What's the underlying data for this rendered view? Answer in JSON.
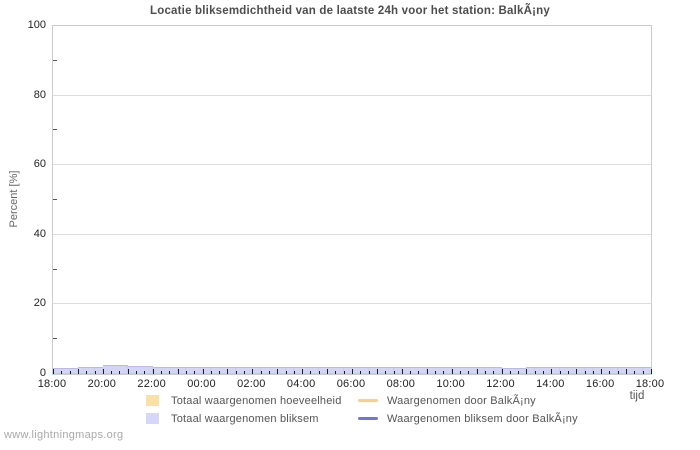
{
  "page": {
    "footer_link": "www.lightningmaps.org"
  },
  "chart_data": {
    "type": "area",
    "title": "Locatie bliksemdichtheid van de laatste 24h voor het station: BalkÃ¡ny",
    "xlabel": "tijd",
    "ylabel": "Percent  [%]",
    "ylim": [
      0,
      100
    ],
    "grid": true,
    "legend_position": "bottom",
    "y_tick_labels": [
      "0",
      "20",
      "40",
      "60",
      "80",
      "100"
    ],
    "y_gridlines": [
      20,
      40,
      60,
      80
    ],
    "y_minor_ticks": [
      10,
      30,
      50,
      70,
      90
    ],
    "x_tick_labels": [
      "18:00",
      "20:00",
      "22:00",
      "00:00",
      "02:00",
      "04:00",
      "06:00",
      "08:00",
      "10:00",
      "12:00",
      "14:00",
      "16:00",
      "18:00"
    ],
    "x_total_minutes": 1440,
    "x_minor_step_minutes": 20,
    "x_major_step_minutes": 60,
    "x_label_step_minutes": 120,
    "series": [
      {
        "name": "Totaal waargenomen hoeveelheid",
        "type": "area",
        "draw_order": 2,
        "color": "#f6d2b4",
        "edge": "#f0c39e",
        "separator_color": "",
        "values": [
          0.4,
          0.4,
          0.4,
          0.4,
          0.4,
          0.4,
          0.4,
          0.4,
          0.4,
          0.4,
          0.4,
          0.4,
          0.4,
          0.4,
          0.4,
          0.4,
          0.4,
          0.4,
          0.4,
          0.4,
          0.4,
          0.4,
          0.4,
          0.4
        ]
      },
      {
        "name": "Totaal waargenomen bliksem",
        "type": "area",
        "draw_order": 1,
        "color": "#d4d4f6",
        "edge": "#b9b9ea",
        "separator_color": "rgba(186,186,235,0.45)",
        "values": [
          1.8,
          2.0,
          2.6,
          2.2,
          2.0,
          2.0,
          2.0,
          2.0,
          2.0,
          2.0,
          2.0,
          2.0,
          2.0,
          2.0,
          2.0,
          2.0,
          2.0,
          2.0,
          1.7,
          2.0,
          2.0,
          2.0,
          2.0,
          2.0
        ]
      },
      {
        "name": "Waargenomen door BalkÃ¡ny",
        "type": "line",
        "draw_order": 0,
        "color": "#f8cf8c",
        "values": [
          0,
          0,
          0,
          0,
          0,
          0,
          0,
          0,
          0,
          0,
          0,
          0,
          0,
          0,
          0,
          0,
          0,
          0,
          0,
          0,
          0,
          0,
          0,
          0
        ]
      },
      {
        "name": "Waargenomen bliksem door BalkÃ¡ny",
        "type": "line",
        "draw_order": 0,
        "color": "#7474d8",
        "values": [
          0,
          0,
          0,
          0,
          0,
          0,
          0,
          0,
          0,
          0,
          0,
          0,
          0,
          0,
          0,
          0,
          0,
          0,
          0,
          0,
          0,
          0,
          0,
          0
        ]
      }
    ]
  },
  "legend": {
    "items": [
      {
        "label": "Totaal waargenomen hoeveelheid",
        "swatch": "square",
        "color": "#fbdfa8"
      },
      {
        "label": "Totaal waargenomen bliksem",
        "swatch": "square",
        "color": "#d6d6f8"
      },
      {
        "label": "Waargenomen door BalkÃ¡ny",
        "swatch": "line",
        "color": "#f8cf8c"
      },
      {
        "label": "Waargenomen bliksem door BalkÃ¡ny",
        "swatch": "line",
        "color": "#7474d8"
      }
    ]
  },
  "colors": {
    "frame": "#cccccc",
    "gridline": "#dddddd",
    "tick": "#1a1a1a",
    "title_text": "#4d4d4d",
    "label_text": "#222222",
    "legend_text": "#555555",
    "footer_text": "#a9a9a9"
  }
}
